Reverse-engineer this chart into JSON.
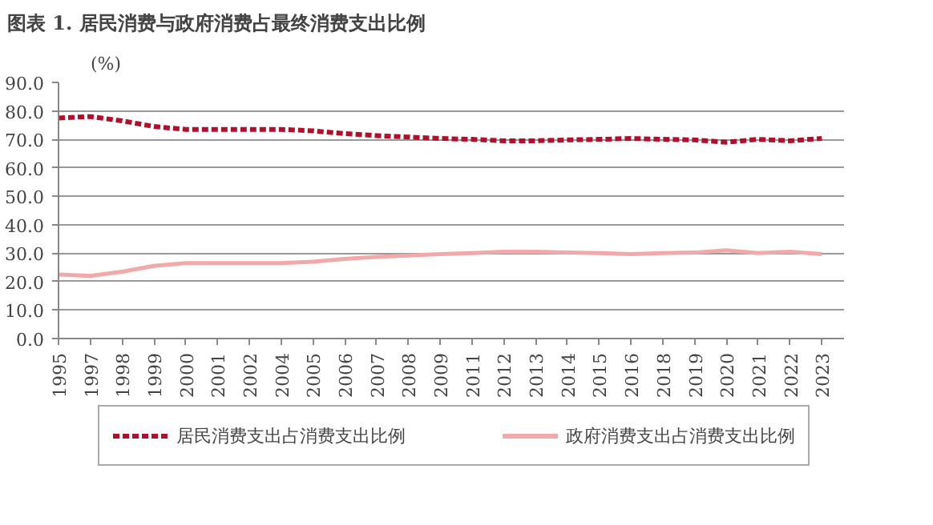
{
  "chart_data": {
    "type": "line",
    "title": "图表 1. 居民消费与政府消费占最终消费支出比例",
    "ylabel": "(%)",
    "categories": [
      "1995",
      "1997",
      "1998",
      "1999",
      "2000",
      "2001",
      "2002",
      "2004",
      "2005",
      "2006",
      "2007",
      "2008",
      "2009",
      "2011",
      "2012",
      "2013",
      "2014",
      "2015",
      "2016",
      "2018",
      "2019",
      "2020",
      "2021",
      "2022",
      "2023"
    ],
    "series": [
      {
        "name": "居民消费支出占消费支出比例",
        "color": "#b0102c",
        "line_style": "dashed",
        "values": [
          77.5,
          78,
          76.5,
          74.5,
          73.5,
          73.5,
          73.5,
          73.5,
          73,
          72,
          71.3,
          70.8,
          70.3,
          70,
          69.5,
          69.5,
          69.8,
          70,
          70.3,
          70,
          69.8,
          69,
          70,
          69.5,
          70.3
        ]
      },
      {
        "name": "政府消费支出占消费支出比例",
        "color": "#f2a9a9",
        "line_style": "solid",
        "values": [
          22.5,
          22,
          23.5,
          25.5,
          26.5,
          26.5,
          26.5,
          26.5,
          27,
          28,
          28.7,
          29.2,
          29.7,
          30,
          30.5,
          30.5,
          30.2,
          30,
          29.7,
          30,
          30.2,
          31,
          30,
          30.5,
          29.7
        ]
      }
    ],
    "ylim": [
      0,
      90
    ],
    "yticks": [
      {
        "value": 0,
        "label": "0.0"
      },
      {
        "value": 10,
        "label": "10.0"
      },
      {
        "value": 20,
        "label": "20.0"
      },
      {
        "value": 30,
        "label": "30.0"
      },
      {
        "value": 40,
        "label": "40.0"
      },
      {
        "value": 50,
        "label": "50.0"
      },
      {
        "value": 60,
        "label": "60.0"
      },
      {
        "value": 70,
        "label": "70.0"
      },
      {
        "value": 80,
        "label": "80.0"
      },
      {
        "value": 90,
        "label": "90.0"
      }
    ],
    "grid": "y",
    "legend": "bottom"
  }
}
